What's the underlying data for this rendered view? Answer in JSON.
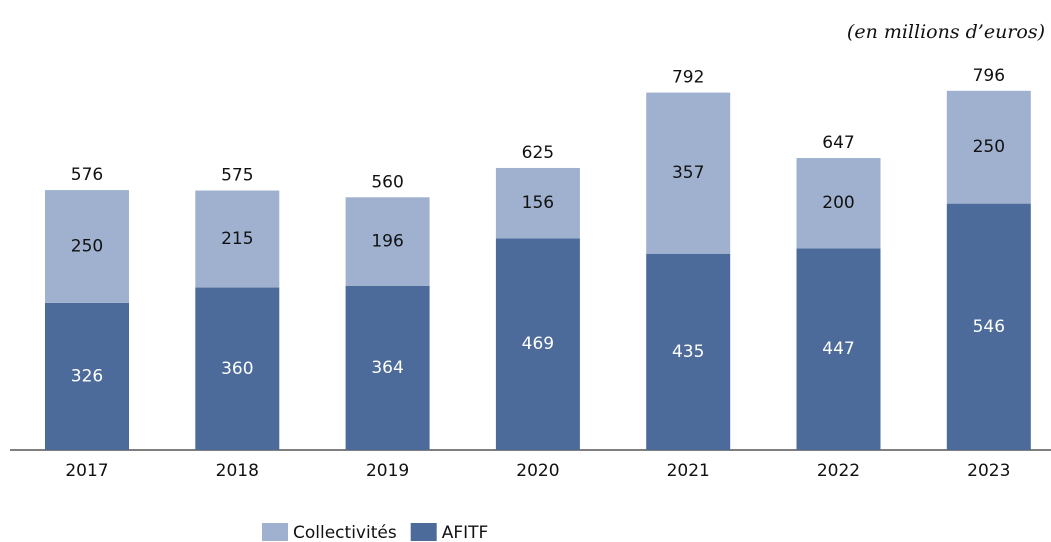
{
  "chart_data": {
    "type": "stacked_bar",
    "subtitle": "(en millions d’euros)",
    "categories": [
      "2017",
      "2018",
      "2019",
      "2020",
      "2021",
      "2022",
      "2023"
    ],
    "series": [
      {
        "name": "AFITF",
        "color": "#4d6b9a",
        "values": [
          326,
          360,
          364,
          469,
          435,
          447,
          546
        ]
      },
      {
        "name": "Collectivités",
        "color": "#9fb1cf",
        "values": [
          250,
          215,
          196,
          156,
          357,
          200,
          250
        ]
      }
    ],
    "totals": [
      576,
      575,
      560,
      625,
      792,
      647,
      796
    ],
    "ylim": [
      0,
      800
    ]
  }
}
